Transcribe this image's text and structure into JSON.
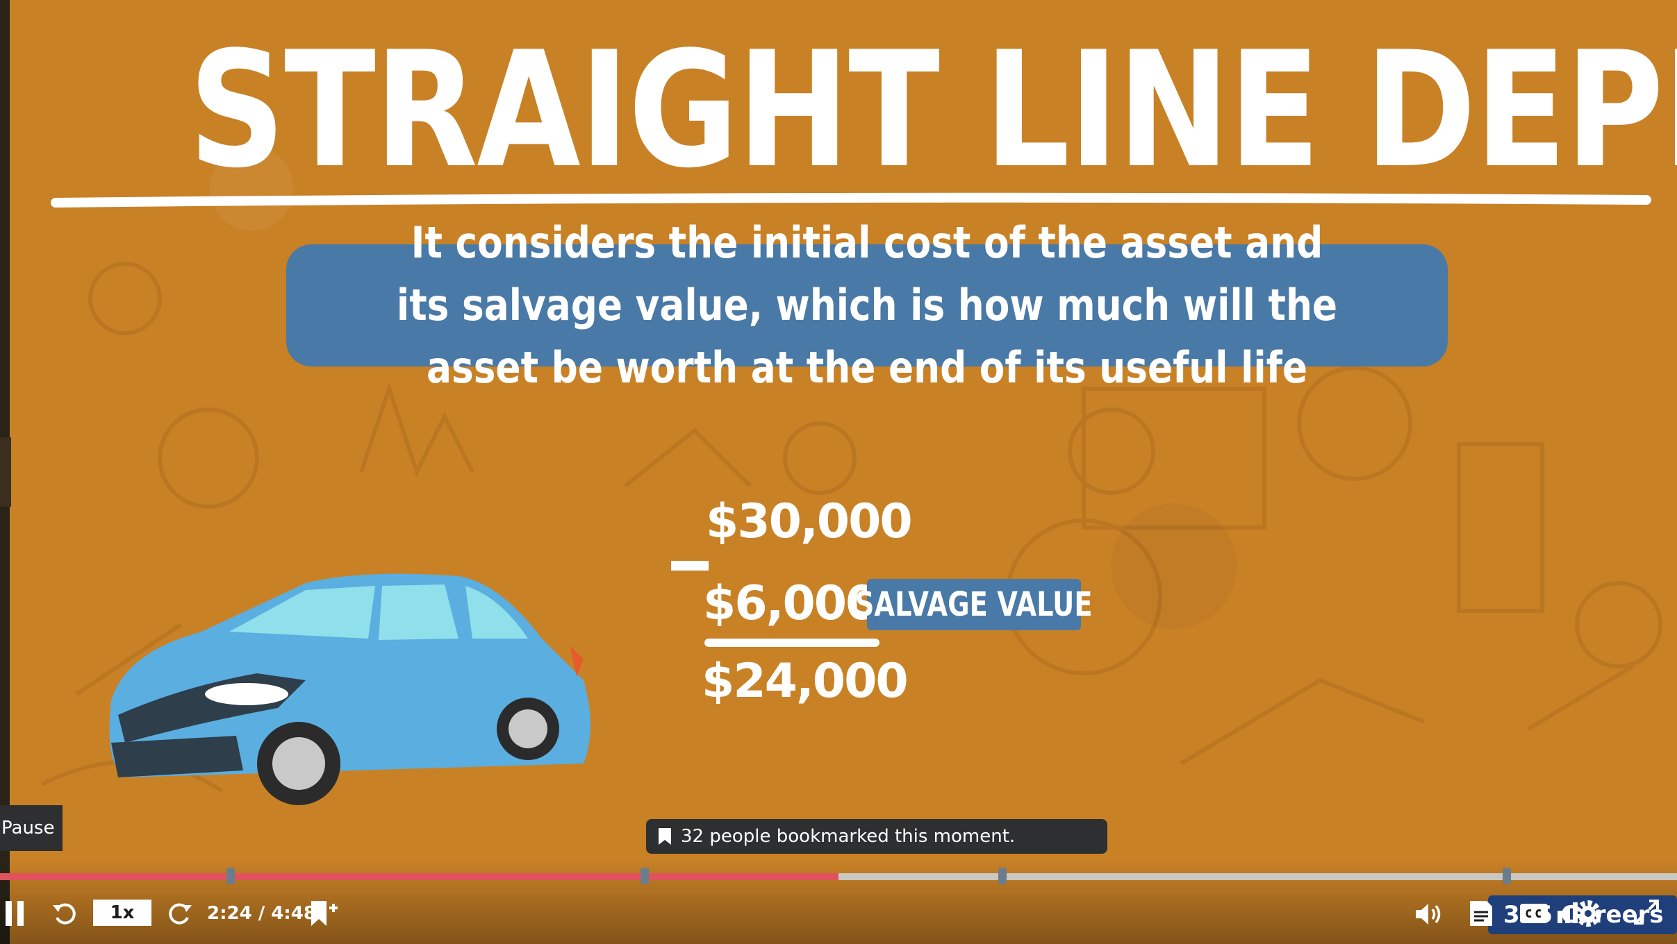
{
  "slide": {
    "title": "STRAIGHT LINE DEPRECIATION",
    "banner_text": "It considers the initial cost of the asset and its salvage value, which is how much will the asset be worth at the end of its useful life",
    "initial_cost": "$30,000",
    "salvage_amount": "$6,000",
    "salvage_label": "SALVAGE VALUE",
    "result": "$24,000"
  },
  "tooltips": {
    "pause": "Pause",
    "bookmark": "32 people bookmarked this moment."
  },
  "player": {
    "speed": "1x",
    "time": "2:24 / 4:48",
    "progress_fraction": 0.5,
    "logo_text": "365 Careers"
  },
  "colors": {
    "background": "#c98126",
    "banner": "#4979a6",
    "progress_played": "#e0535c",
    "progress_track": "#c9c7c2"
  },
  "icons": [
    "pause-icon",
    "rewind-icon",
    "forward-icon",
    "add-bookmark-icon",
    "volume-icon",
    "transcript-icon",
    "captions-icon",
    "settings-icon",
    "fullscreen-icon",
    "bookmark-icon"
  ]
}
